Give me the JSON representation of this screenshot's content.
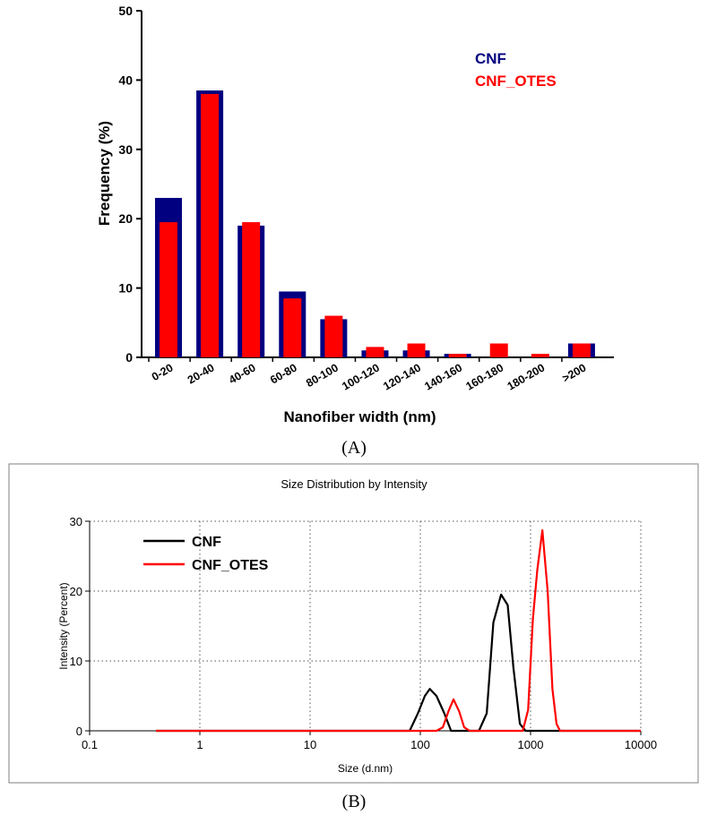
{
  "chart_data": [
    {
      "panel_label": "A",
      "type": "bar",
      "categories": [
        "0-20",
        "20-40",
        "40-60",
        "60-80",
        "80-100",
        "100-120",
        "120-140",
        "140-160",
        "160-180",
        "180-200",
        ">200"
      ],
      "series": [
        {
          "name": "CNF",
          "color": "#000080",
          "values": [
            23,
            38.5,
            19,
            9.5,
            5.5,
            1,
            1,
            0.5,
            0,
            0,
            2
          ]
        },
        {
          "name": "CNF_OTES",
          "color": "#ff0000",
          "values": [
            19.5,
            38,
            19.5,
            8.5,
            6,
            1.5,
            2,
            0.5,
            2,
            0.5,
            2
          ]
        }
      ],
      "xlabel": "Nanofiber width (nm)",
      "ylabel": "Frequency (%)",
      "ylim": [
        0,
        50
      ],
      "yticks": [
        "0",
        "10",
        "20",
        "30",
        "40",
        "50"
      ],
      "legend_position": "top-right",
      "grid": false
    },
    {
      "panel_label": "B",
      "type": "line",
      "title": "Size Distribution by Intensity",
      "xlabel": "Size (d.nm)",
      "ylabel": "Intensity (Percent)",
      "xscale": "log",
      "xlim": [
        0.1,
        10000
      ],
      "ylim": [
        0,
        30
      ],
      "xticks": [
        "0.1",
        "1",
        "10",
        "100",
        "1000",
        "10000"
      ],
      "yticks": [
        "0",
        "10",
        "20",
        "30"
      ],
      "grid": true,
      "legend_position": "top-left",
      "series": [
        {
          "name": "CNF",
          "color": "#000000",
          "x": [
            0.4,
            70,
            80,
            95,
            110,
            122,
            140,
            165,
            190,
            250,
            340,
            400,
            460,
            540,
            620,
            700,
            800,
            900,
            1100,
            10000
          ],
          "y": [
            0,
            0,
            0,
            2.5,
            5,
            6,
            5,
            2.5,
            0,
            0,
            0,
            2.5,
            15.5,
            19.5,
            18,
            9,
            1,
            0,
            0,
            0
          ]
        },
        {
          "name": "CNF_OTES",
          "color": "#ff0000",
          "x": [
            0.4,
            120,
            140,
            160,
            180,
            200,
            225,
            250,
            280,
            750,
            850,
            950,
            1050,
            1150,
            1280,
            1430,
            1580,
            1720,
            1850,
            2050,
            10000
          ],
          "y": [
            0,
            0,
            0,
            0.5,
            2.8,
            4.5,
            2.8,
            0.5,
            0,
            0,
            0,
            3,
            16,
            23,
            28.7,
            20,
            6,
            1,
            0,
            0,
            0
          ]
        }
      ]
    }
  ]
}
